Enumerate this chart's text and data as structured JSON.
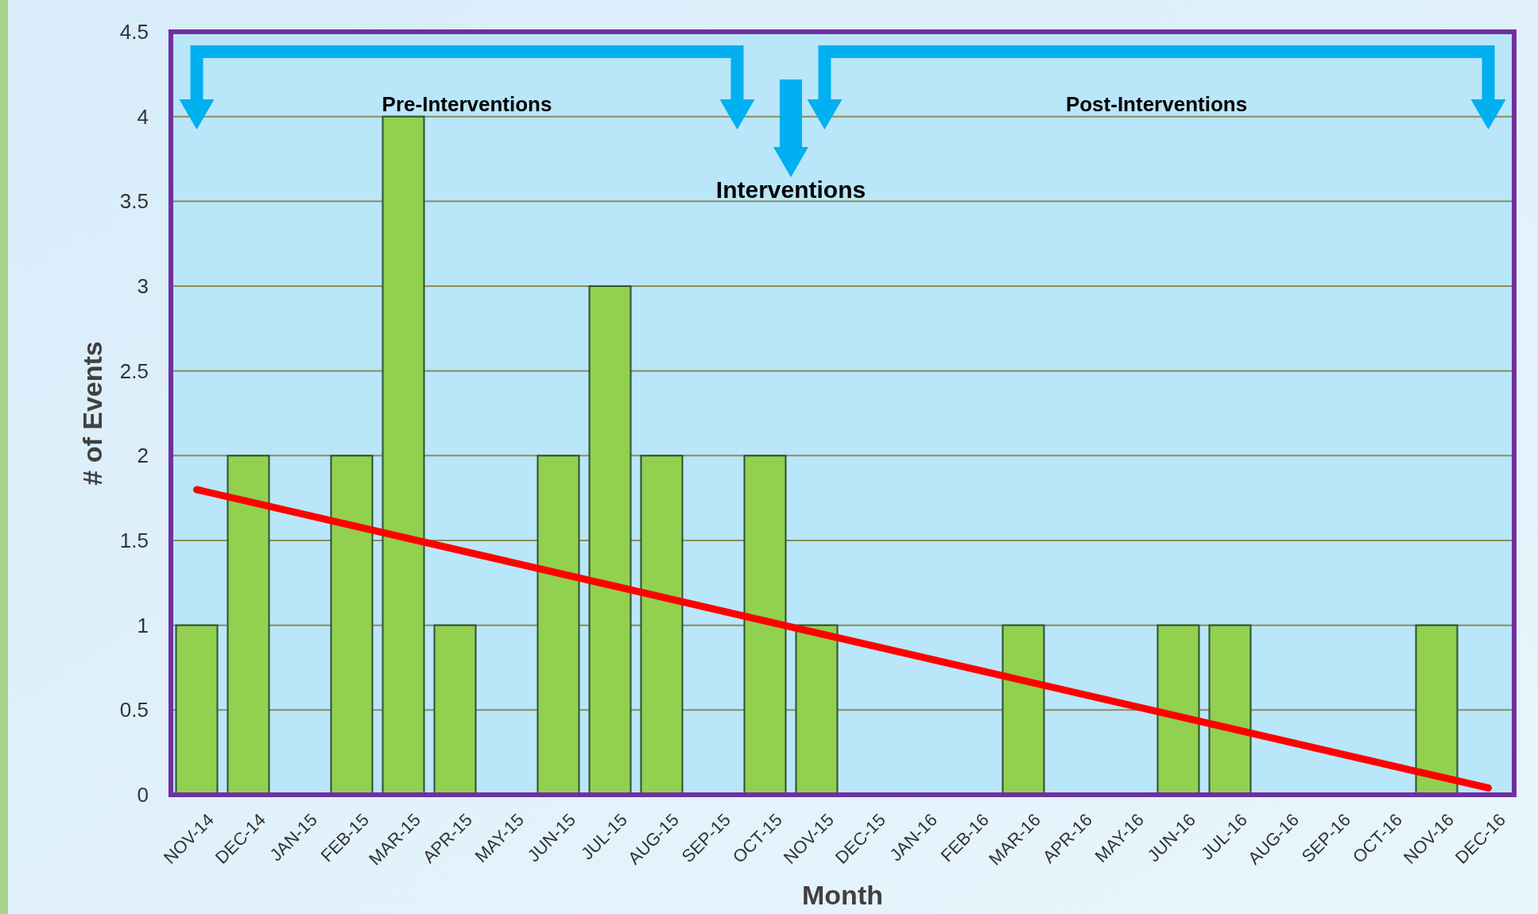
{
  "chart_data": {
    "type": "bar",
    "xlabel": "Month",
    "ylabel": "# of Events",
    "categories": [
      "NOV-14",
      "DEC-14",
      "JAN-15",
      "FEB-15",
      "MAR-15",
      "APR-15",
      "MAY-15",
      "JUN-15",
      "JUL-15",
      "AUG-15",
      "SEP-15",
      "OCT-15",
      "NOV-15",
      "DEC-15",
      "JAN-16",
      "FEB-16",
      "MAR-16",
      "APR-16",
      "MAY-16",
      "JUN-16",
      "JUL-16",
      "AUG-16",
      "SEP-16",
      "OCT-16",
      "NOV-16",
      "DEC-16"
    ],
    "series": [
      {
        "color": "#92d050",
        "values": [
          1,
          2,
          0,
          2,
          4,
          1,
          0,
          2,
          3,
          2,
          0,
          2,
          1,
          0,
          0,
          0,
          1,
          0,
          0,
          1,
          1,
          0,
          0,
          0,
          1,
          null
        ]
      },
      {
        "type": "line",
        "color": "#ff0000",
        "x": [
          "NOV-14",
          "DEC-16"
        ],
        "values": [
          1.8,
          0.04
        ]
      }
    ],
    "ylim": [
      0,
      4.5
    ],
    "yticks": [
      0,
      0.5,
      1,
      1.5,
      2,
      2.5,
      3,
      3.5,
      4,
      4.5
    ],
    "grid": "y",
    "annotations": [
      "Pre-Interventions",
      "Interventions",
      "Post-Interventions"
    ]
  }
}
